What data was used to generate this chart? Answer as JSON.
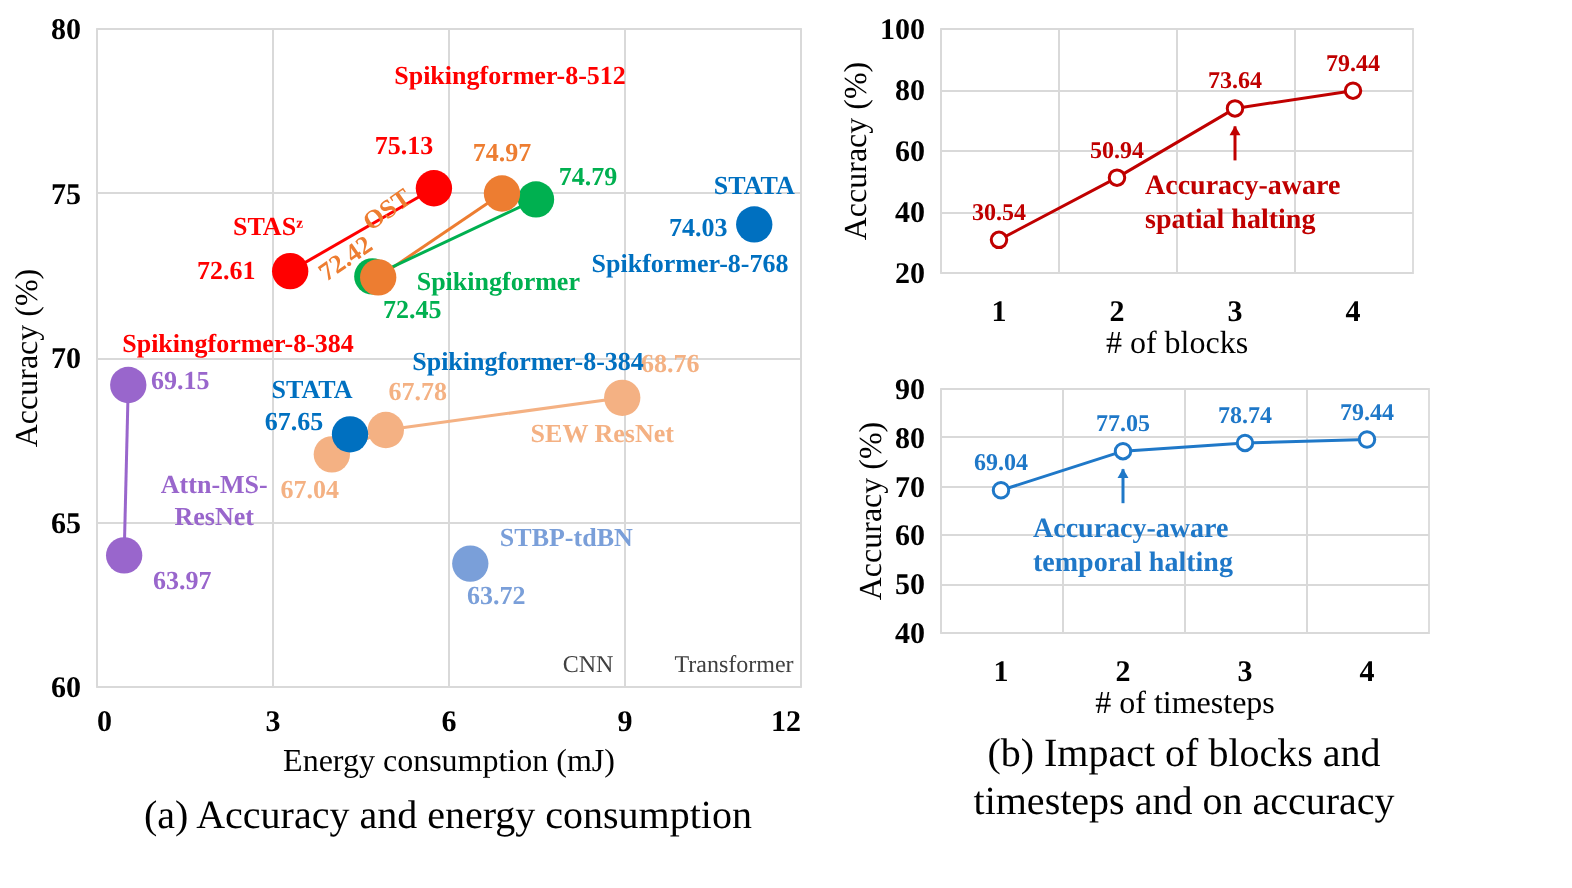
{
  "chart_data": [
    {
      "type": "scatter",
      "title": "(a) Accuracy and energy consumption",
      "xlabel": "Energy consumption (mJ)",
      "ylabel": "Accuracy (%)",
      "xlim": [
        0,
        12
      ],
      "xticks": [
        0,
        3,
        6,
        9,
        12
      ],
      "ylim": [
        60,
        80
      ],
      "yticks": [
        60,
        65,
        70,
        75,
        80
      ],
      "grid": true,
      "marker": "circle",
      "series": [
        {
          "name": "STASᶻ",
          "type": "line",
          "color": "#ff0000",
          "x": [
            3.31,
            5.76
          ],
          "values": [
            72.61,
            75.13
          ],
          "value_labels": [
            "72.61",
            "75.13"
          ]
        },
        {
          "name": "OST",
          "type": "line",
          "color": "#ed7d31",
          "x": [
            4.81,
            6.92
          ],
          "values": [
            72.42,
            74.97
          ],
          "value_labels": [
            "72.42",
            "74.97"
          ]
        },
        {
          "name": "Spikingformer",
          "type": "line",
          "color": "#00b050",
          "x": [
            4.71,
            7.5
          ],
          "values": [
            72.45,
            74.79
          ],
          "value_labels": [
            "72.45",
            "74.79"
          ]
        },
        {
          "name": "STATA",
          "type": "scatter",
          "color": "#0070c0",
          "x": [
            4.33,
            11.22
          ],
          "values": [
            67.65,
            74.03
          ],
          "value_labels": [
            "67.65",
            "74.03"
          ]
        },
        {
          "name": "SEW ResNet",
          "type": "line",
          "color": "#f4b183",
          "x": [
            4.02,
            4.94,
            8.97
          ],
          "values": [
            67.04,
            67.78,
            68.76
          ],
          "value_labels": [
            "67.04",
            "67.78",
            "68.76"
          ]
        },
        {
          "name": "Attn-MS-\nResNet",
          "type": "line",
          "color": "#9966cc",
          "x": [
            0.55,
            0.48
          ],
          "values": [
            69.15,
            63.97
          ],
          "value_labels": [
            "69.15",
            "63.97"
          ]
        },
        {
          "name": "STBP-tdBN",
          "type": "scatter",
          "color": "#7a9fd9",
          "x": [
            6.38
          ],
          "values": [
            63.72
          ],
          "value_labels": [
            "63.72"
          ]
        }
      ],
      "annotations": [
        "Spikingformer-8-512",
        "Spikingformer-8-384",
        "Spikingformer-8-384",
        "Spikformer-8-768",
        "CNN",
        "Transformer"
      ]
    },
    {
      "type": "line",
      "xlabel": "# of blocks",
      "ylabel": "Accuracy (%)",
      "categories": [
        "1",
        "2",
        "3",
        "4"
      ],
      "ylim": [
        20,
        100
      ],
      "yticks": [
        20,
        40,
        60,
        80,
        100
      ],
      "grid": true,
      "marker": "circle",
      "data_labels": true,
      "series": [
        {
          "color": "#c00000",
          "values": [
            30.54,
            50.94,
            73.64,
            79.44
          ]
        }
      ],
      "annotations": [
        {
          "text": "Accuracy-aware\nspatial halting",
          "x": "3",
          "y": 73.64
        }
      ]
    },
    {
      "type": "line",
      "title": "(b) Impact of blocks and timesteps and on accuracy",
      "xlabel": "# of timesteps",
      "ylabel": "Accuracy (%)",
      "categories": [
        "1",
        "2",
        "3",
        "4"
      ],
      "ylim": [
        40,
        90
      ],
      "yticks": [
        40,
        50,
        60,
        70,
        80,
        90
      ],
      "grid": true,
      "marker": "circle",
      "data_labels": true,
      "series": [
        {
          "color": "#1f78c8",
          "values": [
            69.04,
            77.05,
            78.74,
            79.44
          ]
        }
      ],
      "annotations": [
        {
          "text": "Accuracy-aware\ntemporal halting",
          "x": "2",
          "y": 77.05
        }
      ]
    }
  ]
}
